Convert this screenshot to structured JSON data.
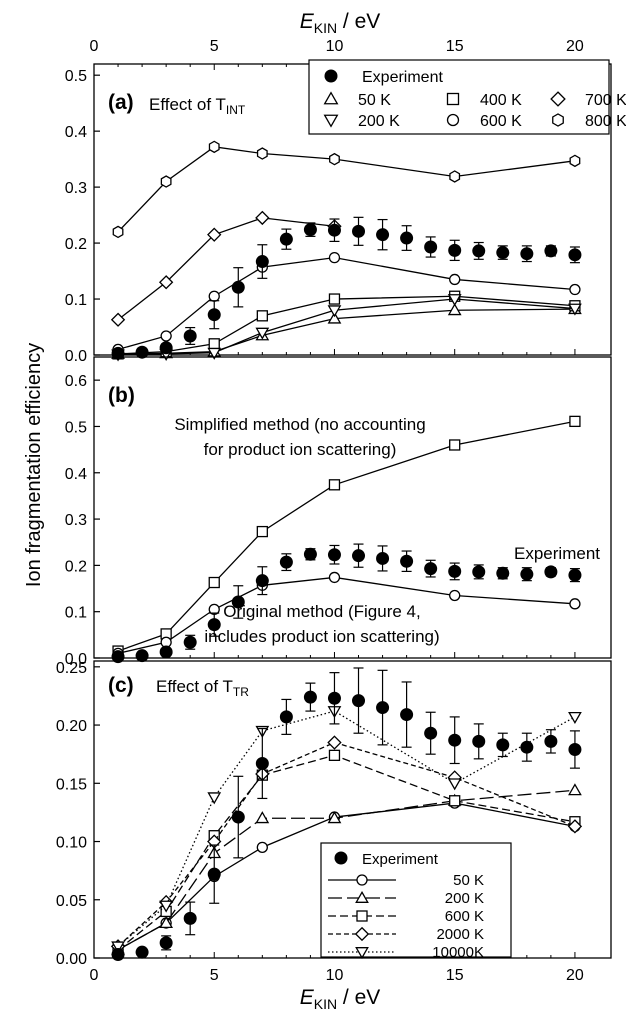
{
  "figure": {
    "ylabel": "Ion fragmentation efficiency",
    "xlabel_main": "E",
    "xlabel_sub": "KIN",
    "xlabel_unit": " / eV",
    "x_ticks": [
      "0",
      "5",
      "10",
      "15",
      "20"
    ]
  },
  "chart_data": [
    {
      "type": "line",
      "panel": "(a)",
      "title": "Effect of T",
      "title_sub": "INT",
      "xlim": [
        0,
        21.5
      ],
      "ylim": [
        0,
        0.52
      ],
      "y_ticks": [
        "0.0",
        "0.1",
        "0.2",
        "0.3",
        "0.4",
        "0.5"
      ],
      "y_tick_values": [
        0,
        0.1,
        0.2,
        0.3,
        0.4,
        0.5
      ],
      "legend_position": "top-right",
      "experiment": {
        "name": "Experiment",
        "x": [
          1,
          2,
          3,
          4,
          5,
          6,
          7,
          8,
          9,
          10,
          11,
          12,
          13,
          14,
          15,
          16,
          17,
          18,
          19,
          20
        ],
        "y": [
          0.003,
          0.005,
          0.013,
          0.034,
          0.072,
          0.121,
          0.167,
          0.207,
          0.224,
          0.223,
          0.221,
          0.215,
          0.209,
          0.193,
          0.187,
          0.186,
          0.183,
          0.181,
          0.186,
          0.179
        ],
        "err": [
          0.003,
          0.004,
          0.006,
          0.015,
          0.025,
          0.035,
          0.03,
          0.018,
          0.012,
          0.02,
          0.025,
          0.027,
          0.022,
          0.018,
          0.018,
          0.015,
          0.012,
          0.014,
          0.009,
          0.014
        ]
      },
      "series": [
        {
          "name": "50 K",
          "marker": "triangle-up",
          "x": [
            1,
            3,
            5,
            7,
            10,
            15,
            20
          ],
          "y": [
            0.002,
            0.003,
            0.006,
            0.035,
            0.065,
            0.08,
            0.082
          ]
        },
        {
          "name": "400 K",
          "marker": "square",
          "x": [
            1,
            3,
            5,
            7,
            10,
            15,
            20
          ],
          "y": [
            0.002,
            0.006,
            0.02,
            0.07,
            0.1,
            0.105,
            0.088
          ]
        },
        {
          "name": "700 K",
          "marker": "diamond",
          "x": [
            1,
            3,
            5,
            7,
            10,
            15,
            20
          ],
          "y": [
            0.063,
            0.13,
            0.215,
            0.245,
            0.23,
            null,
            null
          ]
        },
        {
          "name": "200 K",
          "marker": "triangle-down",
          "x": [
            1,
            3,
            5,
            7,
            10,
            15,
            20
          ],
          "y": [
            0.001,
            0.002,
            0.004,
            0.04,
            0.08,
            0.1,
            0.083
          ]
        },
        {
          "name": "600 K",
          "marker": "circle",
          "x": [
            1,
            3,
            5,
            7,
            10,
            15,
            20
          ],
          "y": [
            0.01,
            0.034,
            0.105,
            0.157,
            0.174,
            0.135,
            0.117
          ]
        },
        {
          "name": "800 K",
          "marker": "hexagon",
          "x": [
            1,
            3,
            5,
            7,
            10,
            15,
            20
          ],
          "y": [
            0.22,
            0.31,
            0.372,
            0.36,
            0.35,
            0.319,
            0.347
          ]
        }
      ]
    },
    {
      "type": "line",
      "panel": "(b)",
      "xlim": [
        0,
        21.5
      ],
      "ylim": [
        0,
        0.65
      ],
      "y_ticks": [
        "0.0",
        "0.1",
        "0.2",
        "0.3",
        "0.4",
        "0.5",
        "0.6"
      ],
      "y_tick_values": [
        0,
        0.1,
        0.2,
        0.3,
        0.4,
        0.5,
        0.6
      ],
      "annotations": [
        "Simplified method (no accounting",
        "for product ion scattering)",
        "Experiment",
        "Original method (Figure 4,",
        "includes product ion scattering)"
      ],
      "experiment": {
        "x": [
          1,
          2,
          3,
          4,
          5,
          6,
          7,
          8,
          9,
          10,
          11,
          12,
          13,
          14,
          15,
          16,
          17,
          18,
          19,
          20
        ],
        "y": [
          0.003,
          0.005,
          0.013,
          0.034,
          0.072,
          0.121,
          0.167,
          0.207,
          0.224,
          0.223,
          0.221,
          0.215,
          0.209,
          0.193,
          0.187,
          0.186,
          0.183,
          0.181,
          0.186,
          0.179
        ],
        "err": [
          0.003,
          0.004,
          0.006,
          0.015,
          0.025,
          0.035,
          0.03,
          0.018,
          0.012,
          0.02,
          0.025,
          0.027,
          0.022,
          0.018,
          0.018,
          0.015,
          0.012,
          0.014,
          0.009,
          0.014
        ]
      },
      "series": [
        {
          "marker": "square",
          "x": [
            1,
            3,
            5,
            7,
            10,
            15,
            20
          ],
          "y": [
            0.015,
            0.052,
            0.163,
            0.273,
            0.374,
            0.46,
            0.511
          ]
        },
        {
          "marker": "circle",
          "x": [
            1,
            3,
            5,
            7,
            10,
            15,
            20
          ],
          "y": [
            0.01,
            0.034,
            0.105,
            0.157,
            0.174,
            0.135,
            0.117
          ]
        }
      ]
    },
    {
      "type": "line",
      "panel": "(c)",
      "title": "Effect of T",
      "title_sub": "TR",
      "xlim": [
        0,
        21.5
      ],
      "ylim": [
        0,
        0.255
      ],
      "y_ticks": [
        "0.00",
        "0.05",
        "0.10",
        "0.15",
        "0.20",
        "0.25"
      ],
      "y_tick_values": [
        0,
        0.05,
        0.1,
        0.15,
        0.2,
        0.25
      ],
      "legend_position": "bottom-right",
      "experiment": {
        "name": "Experiment",
        "x": [
          1,
          2,
          3,
          4,
          5,
          6,
          7,
          8,
          9,
          10,
          11,
          12,
          13,
          14,
          15,
          16,
          17,
          18,
          19,
          20
        ],
        "y": [
          0.003,
          0.005,
          0.013,
          0.034,
          0.072,
          0.121,
          0.167,
          0.207,
          0.224,
          0.223,
          0.221,
          0.215,
          0.209,
          0.193,
          0.187,
          0.186,
          0.183,
          0.181,
          0.186,
          0.179
        ],
        "err": [
          0.003,
          0.003,
          0.006,
          0.014,
          0.025,
          0.035,
          0.03,
          0.015,
          0.012,
          0.022,
          0.028,
          0.032,
          0.028,
          0.018,
          0.02,
          0.015,
          0.01,
          0.012,
          0.01,
          0.016
        ]
      },
      "series": [
        {
          "name": "50 K",
          "marker": "circle",
          "dash": "solid",
          "x": [
            1,
            3,
            5,
            7,
            10,
            15,
            20
          ],
          "y": [
            0.007,
            0.03,
            0.07,
            0.095,
            0.121,
            0.133,
            0.113
          ]
        },
        {
          "name": "200 K",
          "marker": "triangle-up",
          "dash": "long",
          "x": [
            1,
            3,
            5,
            7,
            10,
            15,
            20
          ],
          "y": [
            0.007,
            0.03,
            0.09,
            0.12,
            0.12,
            0.135,
            0.144
          ]
        },
        {
          "name": "600 K",
          "marker": "square",
          "dash": "medium",
          "x": [
            1,
            3,
            5,
            7,
            10,
            15,
            20
          ],
          "y": [
            0.007,
            0.04,
            0.105,
            0.157,
            0.174,
            0.135,
            0.117
          ]
        },
        {
          "name": "2000 K",
          "marker": "diamond",
          "dash": "short",
          "x": [
            1,
            3,
            5,
            7,
            10,
            15,
            20
          ],
          "y": [
            0.01,
            0.048,
            0.1,
            0.158,
            0.185,
            0.155,
            0.113
          ]
        },
        {
          "name": "10000K",
          "marker": "triangle-down",
          "dash": "dotted",
          "x": [
            1,
            3,
            5,
            7,
            10,
            15,
            20
          ],
          "y": [
            0.01,
            0.045,
            0.138,
            0.195,
            0.212,
            0.15,
            0.207
          ]
        }
      ]
    }
  ]
}
